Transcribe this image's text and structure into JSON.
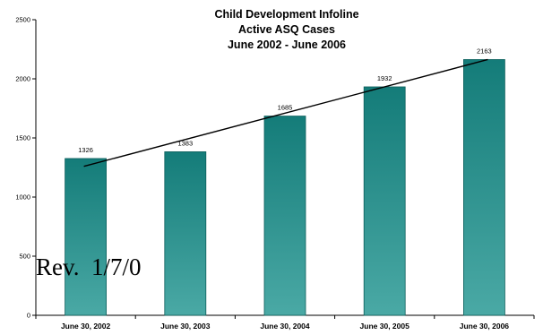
{
  "chart_data": {
    "type": "bar",
    "title": [
      "Child Development Infoline",
      "Active ASQ Cases",
      "June 2002 - June 2006"
    ],
    "categories": [
      "June 30, 2002",
      "June 30, 2003",
      "June 30, 2004",
      "June 30, 2005",
      "June 30, 2006"
    ],
    "values": [
      1326,
      1383,
      1685,
      1932,
      2163
    ],
    "data_labels": [
      "1326",
      "1383",
      "1685",
      "1932",
      "2163"
    ],
    "yticks": [
      "0",
      "500",
      "1000",
      "1500",
      "2000",
      "2500"
    ],
    "ylim": [
      0,
      2500
    ],
    "trendline": {
      "start": 1260,
      "end": 2163
    },
    "grid": false,
    "legend": "none",
    "colors": {
      "bar_top": "#147c79",
      "bar_bottom": "#4aa9a5",
      "bar_edge": "#0d5f5c"
    }
  },
  "overlay_text": "Rev.  1/7/0"
}
